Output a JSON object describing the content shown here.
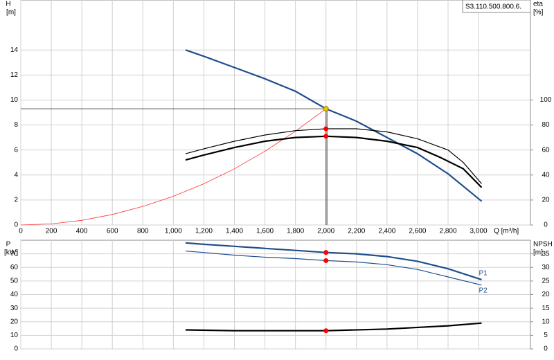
{
  "chart_data": [
    {
      "type": "line",
      "title": "S3.110.500.800.6.",
      "ylabel": "H",
      "yunit": "[m]",
      "y2label": "eta",
      "y2unit": "[%]",
      "xlabel": "Q [m³/h]",
      "xlim": [
        0,
        3340
      ],
      "ylim": [
        0,
        18
      ],
      "y2lim": [
        0,
        180
      ],
      "grid": true,
      "xticks": [
        0,
        200,
        400,
        600,
        800,
        {
          "value": 1000,
          "label": "1,000"
        },
        {
          "value": 1200,
          "label": "1,200"
        },
        {
          "value": 1400,
          "label": "1,400"
        },
        {
          "value": 1600,
          "label": "1,600"
        },
        {
          "value": 1800,
          "label": "1,800"
        },
        {
          "value": 2000,
          "label": "2,000"
        },
        {
          "value": 2200,
          "label": "2,200"
        },
        {
          "value": 2400,
          "label": "2,400"
        },
        {
          "value": 2600,
          "label": "2,600"
        },
        {
          "value": 2800,
          "label": "2,800"
        },
        {
          "value": 3000,
          "label": "3,000"
        }
      ],
      "yticks": [
        0,
        2,
        4,
        6,
        8,
        10,
        12,
        14
      ],
      "y2ticks": [
        0,
        20,
        40,
        60,
        80,
        100
      ],
      "series": [
        {
          "color": "#1f4e8c",
          "line_width": 2.2,
          "x": [
            1080,
            1200,
            1400,
            1600,
            1800,
            2000,
            2200,
            2400,
            2600,
            2800,
            3020
          ],
          "values": [
            14.0,
            13.5,
            12.6,
            11.7,
            10.7,
            9.3,
            8.3,
            7.0,
            5.7,
            4.1,
            1.9
          ]
        },
        {
          "color": "#ff3030",
          "line_width": 0.8,
          "x": [
            0,
            200,
            400,
            600,
            800,
            1000,
            1200,
            1400,
            1600,
            1800,
            2000
          ],
          "values": [
            0,
            0.09,
            0.37,
            0.84,
            1.49,
            2.3,
            3.3,
            4.5,
            5.9,
            7.5,
            9.3
          ]
        },
        {
          "color": "#000000",
          "line_width": 1.2,
          "axis": "y2",
          "x": [
            1080,
            1200,
            1400,
            1600,
            1800,
            2000,
            2200,
            2400,
            2600,
            2800,
            2900,
            3020
          ],
          "values": [
            57,
            61,
            67,
            72,
            75.5,
            77,
            77,
            74.5,
            69,
            60,
            50,
            33
          ]
        },
        {
          "color": "#000000",
          "line_width": 2.2,
          "axis": "y2",
          "x": [
            1080,
            1200,
            1400,
            1600,
            1800,
            2000,
            2200,
            2400,
            2600,
            2750,
            2900,
            3020
          ],
          "values": [
            52,
            56,
            62,
            67,
            70,
            71,
            70,
            67,
            62,
            54,
            45,
            30
          ]
        }
      ],
      "operating_points": [
        {
          "x": 2000,
          "y": 9.3,
          "color": "#f5c000",
          "guides": true
        },
        {
          "x": 2000,
          "y": 77,
          "axis": "y2",
          "color": "#ff0000"
        },
        {
          "x": 2000,
          "y": 71,
          "axis": "y2",
          "color": "#ff0000"
        }
      ]
    },
    {
      "type": "line",
      "ylabel": "P",
      "yunit": "[kW]",
      "y2label": "NPSH",
      "y2unit": "[m]",
      "xlim": [
        0,
        3340
      ],
      "ylim": [
        0,
        80
      ],
      "y2lim": [
        0,
        40
      ],
      "grid": true,
      "yticks": [
        0,
        10,
        20,
        30,
        40,
        50,
        60,
        70
      ],
      "y2ticks": [
        0,
        5,
        10,
        15,
        20,
        25,
        30,
        35
      ],
      "series": [
        {
          "name": "P1",
          "color": "#1f4e8c",
          "line_width": 2.2,
          "x": [
            1080,
            1200,
            1400,
            1600,
            1800,
            2000,
            2200,
            2400,
            2600,
            2800,
            3020
          ],
          "values": [
            78,
            77,
            75.5,
            74,
            72.5,
            71,
            70,
            68,
            64.5,
            59,
            51
          ]
        },
        {
          "name": "P2",
          "color": "#1f4e8c",
          "line_width": 1.2,
          "x": [
            1080,
            1200,
            1400,
            1600,
            1800,
            2000,
            2200,
            2400,
            2600,
            2800,
            3020
          ],
          "values": [
            72,
            71,
            69,
            67.5,
            66.5,
            65,
            64,
            62,
            58.5,
            53,
            47
          ]
        },
        {
          "color": "#000000",
          "line_width": 2.2,
          "axis": "y2",
          "x": [
            1080,
            1400,
            2000,
            2400,
            2800,
            3020
          ],
          "values": [
            7,
            6.7,
            6.7,
            7.3,
            8.5,
            9.5
          ]
        }
      ],
      "operating_points": [
        {
          "x": 2000,
          "y": 71,
          "color": "#ff0000"
        },
        {
          "x": 2000,
          "y": 65,
          "color": "#ff0000"
        },
        {
          "x": 2000,
          "y": 6.7,
          "axis": "y2",
          "color": "#ff0000"
        }
      ]
    }
  ]
}
